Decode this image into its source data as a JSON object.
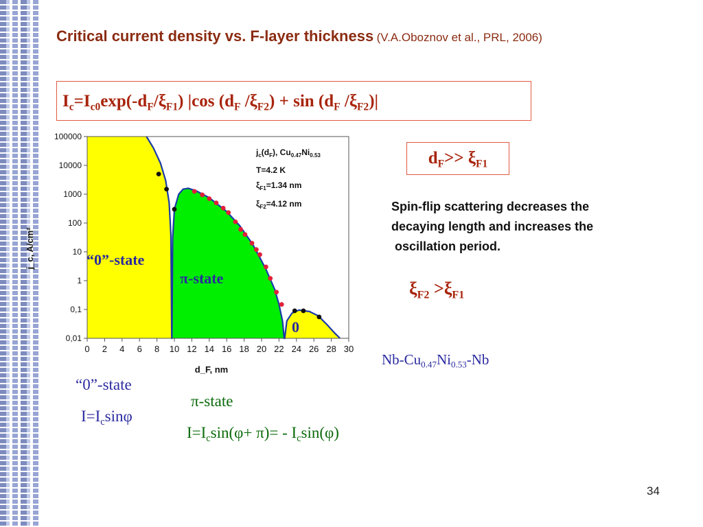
{
  "slide": {
    "title": "Critical current density vs. F-layer thickness",
    "citation": "(V.A.Oboznov et al., PRL, 2006)",
    "formula": {
      "p1": "I",
      "p1s": "c",
      "p2": "=I",
      "p2s": "c0",
      "p3": "exp(-d",
      "p3s": "F",
      "p4": "/ξ",
      "p4s": "F1",
      "p5": ") |cos (d",
      "p5s": "F",
      "p6": " /ξ",
      "p6s": "F2",
      "p7": ") + sin (d",
      "p7s": "F",
      "p8": " /ξ",
      "p8s": "F2",
      "p9": ")|"
    },
    "df_condition": {
      "a": "d",
      "as": "F",
      "b": ">> ξ",
      "bs": "F1"
    },
    "explanation": [
      "Spin-flip scattering decreases the",
      "decaying length and increases the",
      " oscillation period."
    ],
    "xi_relation": {
      "a": "ξ",
      "as": "F2",
      "b": " >ξ",
      "bs": "F1"
    },
    "material": {
      "a": "Nb-Cu",
      "as": "0.47",
      "b": "Ni",
      "bs": "0.53",
      "c": "-Nb"
    },
    "zero_state": {
      "label": "“0”-state",
      "eq_a": "I=I",
      "eq_as": "c",
      "eq_b": "sinφ"
    },
    "pi_state": {
      "label": "π-state",
      "eq_a": "I=I",
      "eq_as": "c",
      "eq_b": "sin(φ+ π)= - I",
      "eq_bs": "c",
      "eq_c": "sin(φ)"
    },
    "page_number": "34"
  },
  "colors": {
    "zero_region": "#ffff00",
    "pi_region": "#00ee00",
    "curve": "#1a3aa8",
    "red_points": "#e0203a",
    "black_points": "#111111",
    "title": "#8b2c12",
    "formula": "#a8240c",
    "blue_text": "#2a2aa0",
    "green_text": "#0a6a0a"
  },
  "chart_data": {
    "type": "scatter",
    "xlabel": "d_F, nm",
    "ylabel": "j_c, A/cm²",
    "xlim": [
      0,
      30
    ],
    "ylim": [
      0.01,
      100000
    ],
    "yscale": "log",
    "xticks": [
      0,
      2,
      4,
      6,
      8,
      10,
      12,
      14,
      16,
      18,
      20,
      22,
      24,
      26,
      28,
      30
    ],
    "yticks": [
      {
        "v": 100000,
        "label": "100000"
      },
      {
        "v": 10000,
        "label": "10000"
      },
      {
        "v": 1000,
        "label": "1000"
      },
      {
        "v": 100,
        "label": "100"
      },
      {
        "v": 10,
        "label": "10"
      },
      {
        "v": 1,
        "label": "1"
      },
      {
        "v": 0.1,
        "label": "0,1"
      },
      {
        "v": 0.01,
        "label": "0,01"
      }
    ],
    "legend": {
      "l1": "j",
      "l1s": "c",
      "l1b": "(d",
      "l1bs": "F",
      "l1c": "), Cu",
      "l1cs": "0.47",
      "l1d": "Ni",
      "l1ds": "0.53",
      "l2": "T=4.2 K",
      "l3": "ξ",
      "l3s": "F1",
      "l3b": "=1.34 nm",
      "l4": "ξ",
      "l4s": "F2",
      "l4b": "=4.12 nm"
    },
    "region_labels": {
      "zero": "“0”-state",
      "pi": "π-state",
      "zero2": "0"
    },
    "regions": [
      {
        "state": "0",
        "x": [
          0,
          9.7
        ]
      },
      {
        "state": "pi",
        "x": [
          9.7,
          22.6
        ]
      },
      {
        "state": "0",
        "x": [
          22.6,
          29.2
        ]
      }
    ],
    "curve": [
      {
        "x": 6.8,
        "y": 100000
      },
      {
        "x": 7.6,
        "y": 40000
      },
      {
        "x": 8.4,
        "y": 12000
      },
      {
        "x": 9.0,
        "y": 3000
      },
      {
        "x": 9.4,
        "y": 500
      },
      {
        "x": 9.6,
        "y": 40
      },
      {
        "x": 9.7,
        "y": 0.01
      },
      {
        "x": 9.72,
        "y": 0.01
      },
      {
        "x": 9.8,
        "y": 30
      },
      {
        "x": 10.0,
        "y": 300
      },
      {
        "x": 10.5,
        "y": 1000
      },
      {
        "x": 11.0,
        "y": 1500
      },
      {
        "x": 11.6,
        "y": 1600
      },
      {
        "x": 12.5,
        "y": 1300
      },
      {
        "x": 14.0,
        "y": 750
      },
      {
        "x": 16.0,
        "y": 250
      },
      {
        "x": 17.5,
        "y": 80
      },
      {
        "x": 19.0,
        "y": 18
      },
      {
        "x": 20.5,
        "y": 2.5
      },
      {
        "x": 21.5,
        "y": 0.5
      },
      {
        "x": 22.0,
        "y": 0.15
      },
      {
        "x": 22.4,
        "y": 0.04
      },
      {
        "x": 22.6,
        "y": 0.01
      },
      {
        "x": 22.65,
        "y": 0.01
      },
      {
        "x": 22.9,
        "y": 0.04
      },
      {
        "x": 23.5,
        "y": 0.075
      },
      {
        "x": 24.3,
        "y": 0.095
      },
      {
        "x": 25.5,
        "y": 0.085
      },
      {
        "x": 26.5,
        "y": 0.06
      },
      {
        "x": 27.5,
        "y": 0.03
      },
      {
        "x": 28.4,
        "y": 0.015
      },
      {
        "x": 29.0,
        "y": 0.01
      }
    ],
    "series": [
      {
        "color": "black",
        "points": [
          {
            "x": 8.2,
            "y": 5000
          },
          {
            "x": 9.1,
            "y": 1500
          },
          {
            "x": 10.0,
            "y": 300
          },
          {
            "x": 23.8,
            "y": 0.09
          },
          {
            "x": 24.8,
            "y": 0.09
          },
          {
            "x": 26.6,
            "y": 0.055
          }
        ]
      },
      {
        "color": "red",
        "points": [
          {
            "x": 12.3,
            "y": 1250
          },
          {
            "x": 13.2,
            "y": 950
          },
          {
            "x": 14.0,
            "y": 700
          },
          {
            "x": 14.8,
            "y": 500
          },
          {
            "x": 15.6,
            "y": 330
          },
          {
            "x": 16.2,
            "y": 230
          },
          {
            "x": 17.0,
            "y": 110
          },
          {
            "x": 17.6,
            "y": 60
          },
          {
            "x": 18.1,
            "y": 40
          },
          {
            "x": 18.9,
            "y": 20
          },
          {
            "x": 19.4,
            "y": 12
          },
          {
            "x": 19.8,
            "y": 8
          },
          {
            "x": 20.5,
            "y": 3
          },
          {
            "x": 21.0,
            "y": 1.2
          },
          {
            "x": 21.7,
            "y": 0.4
          },
          {
            "x": 22.3,
            "y": 0.15
          }
        ]
      }
    ]
  }
}
